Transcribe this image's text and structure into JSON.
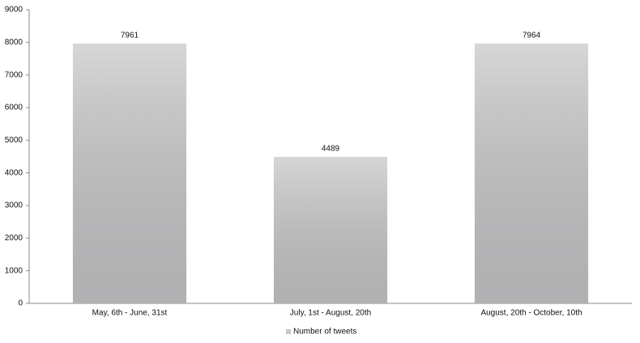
{
  "chart_data": {
    "type": "bar",
    "categories": [
      "May, 6th - June, 31st",
      "July, 1st - August, 20th",
      "August, 20th - October, 10th"
    ],
    "series": [
      {
        "name": "Number of tweets",
        "color": "#c9c8ca",
        "values": [
          7961,
          4489,
          7964
        ]
      }
    ],
    "ylim": [
      0,
      9000
    ],
    "yticks": [
      0,
      1000,
      2000,
      3000,
      4000,
      5000,
      6000,
      7000,
      8000,
      9000
    ],
    "legend": "bottom"
  }
}
